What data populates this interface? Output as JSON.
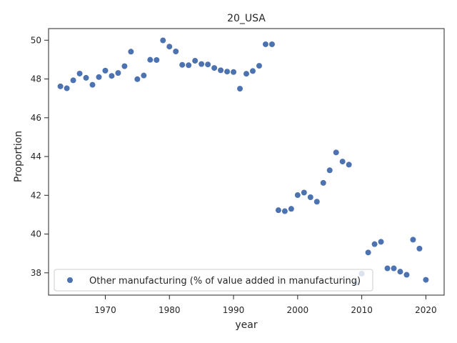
{
  "chart_data": {
    "type": "scatter",
    "title": "20_USA",
    "xlabel": "year",
    "ylabel": "Proportion",
    "xlim": [
      1961.15,
      1922.85
    ],
    "ylim": [
      36.85,
      50.6
    ],
    "xticks": [
      1970,
      1980,
      1990,
      2000,
      2010,
      2020
    ],
    "yticks": [
      38,
      40,
      42,
      44,
      46,
      48,
      50
    ],
    "grid": false,
    "legend_position": "lower-left",
    "marker_color": "#4c72b0",
    "series": [
      {
        "name": "Other manufacturing (% of value added in manufacturing)",
        "x": [
          1963,
          1964,
          1965,
          1966,
          1967,
          1968,
          1969,
          1970,
          1971,
          1972,
          1973,
          1974,
          1975,
          1976,
          1977,
          1978,
          1979,
          1980,
          1981,
          1982,
          1983,
          1984,
          1985,
          1986,
          1987,
          1988,
          1989,
          1990,
          1991,
          1992,
          1993,
          1994,
          1995,
          1996,
          1997,
          1998,
          1999,
          2000,
          2001,
          2002,
          2003,
          2004,
          2005,
          2006,
          2007,
          2008,
          2009,
          2010,
          2011,
          2012,
          2013,
          2014,
          2015,
          2016,
          2017,
          2018,
          2019,
          2020
        ],
        "y": [
          47.62,
          47.52,
          47.93,
          48.28,
          48.06,
          47.7,
          48.1,
          48.43,
          48.16,
          48.31,
          48.66,
          49.41,
          47.99,
          48.18,
          48.99,
          48.98,
          49.99,
          49.67,
          49.42,
          48.73,
          48.71,
          48.94,
          48.77,
          48.75,
          48.57,
          48.45,
          48.38,
          48.36,
          47.5,
          48.27,
          48.41,
          48.68,
          49.79,
          49.79,
          41.23,
          41.18,
          41.3,
          42.01,
          42.14,
          41.9,
          41.67,
          42.64,
          43.29,
          44.21,
          43.74,
          43.58,
          37.48,
          37.96,
          39.05,
          39.48,
          39.6,
          38.23,
          38.23,
          38.06,
          37.9,
          39.71,
          39.25,
          37.64
        ]
      }
    ]
  }
}
